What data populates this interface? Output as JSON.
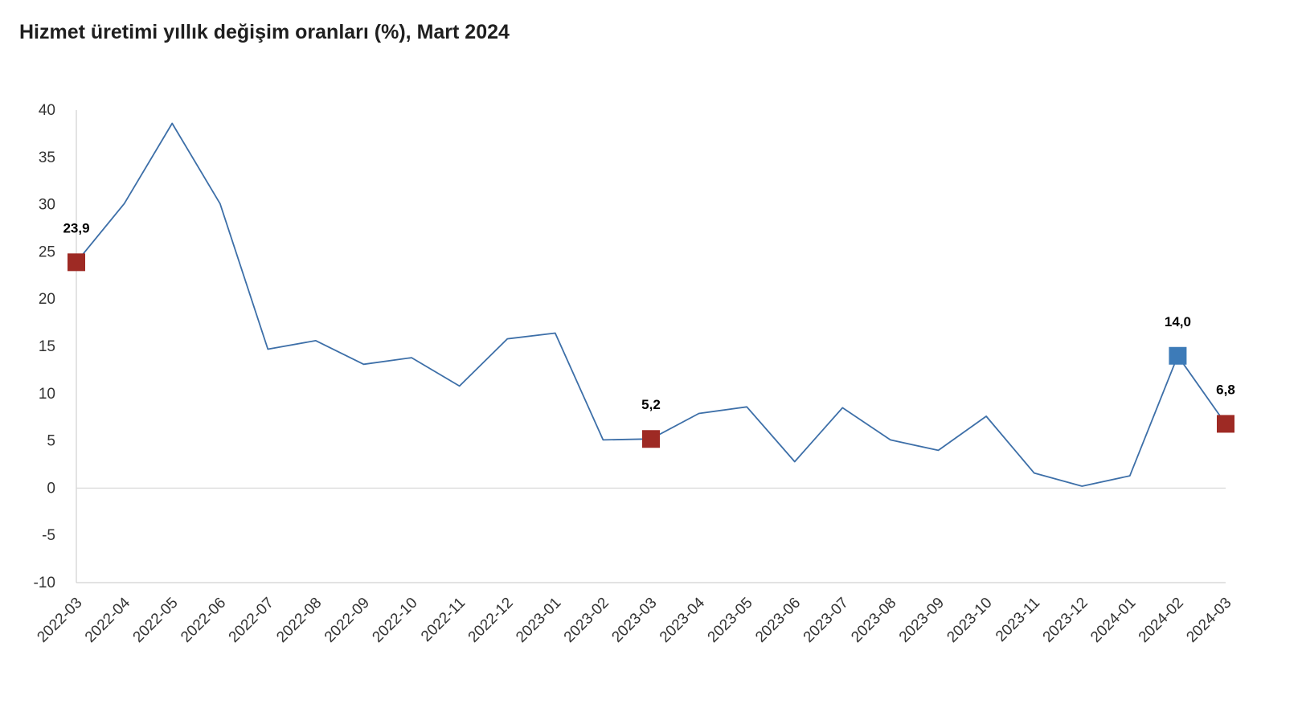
{
  "chart_data": {
    "type": "line",
    "title": "Hizmet üretimi yıllık değişim oranları (%), Mart 2024",
    "xlabel": "",
    "ylabel": "",
    "ylim": [
      -10,
      40
    ],
    "yticks": [
      40,
      35,
      30,
      25,
      20,
      15,
      10,
      5,
      0,
      -5,
      -10
    ],
    "grid": false,
    "legend": "none",
    "categories": [
      "2022-03",
      "2022-04",
      "2022-05",
      "2022-06",
      "2022-07",
      "2022-08",
      "2022-09",
      "2022-10",
      "2022-11",
      "2022-12",
      "2023-01",
      "2023-02",
      "2023-03",
      "2023-04",
      "2023-05",
      "2023-06",
      "2023-07",
      "2023-08",
      "2023-09",
      "2023-10",
      "2023-11",
      "2023-12",
      "2024-01",
      "2024-02",
      "2024-03"
    ],
    "series": [
      {
        "color": "#3d6fa8",
        "values": [
          23.9,
          30.1,
          38.6,
          30.1,
          14.7,
          15.6,
          13.1,
          13.8,
          10.8,
          15.8,
          16.4,
          5.1,
          5.2,
          7.9,
          8.6,
          2.8,
          8.5,
          5.1,
          4.0,
          7.6,
          1.6,
          0.2,
          1.3,
          14.0,
          6.8
        ]
      }
    ],
    "highlighted_points": [
      {
        "index": 0,
        "label": "23,9",
        "color": "#9e2a24"
      },
      {
        "index": 12,
        "label": "5,2",
        "color": "#9e2a24"
      },
      {
        "index": 23,
        "label": "14,0",
        "color": "#3d7bb8"
      },
      {
        "index": 24,
        "label": "6,8",
        "color": "#9e2a24"
      }
    ],
    "colors": {
      "axis": "#d0d0d0",
      "zero_line": "#d9d9d9"
    }
  }
}
